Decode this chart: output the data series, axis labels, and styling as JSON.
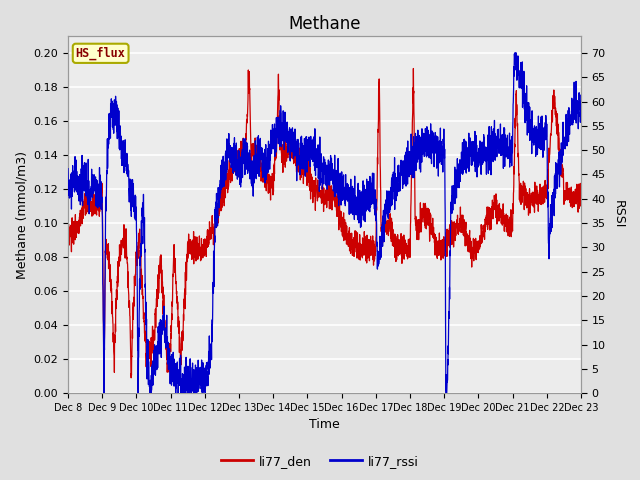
{
  "title": "Methane",
  "xlabel": "Time",
  "ylabel_left": "Methane (mmol/m3)",
  "ylabel_right": "RSSI",
  "legend_label": "HS_flux",
  "line1_label": "li77_den",
  "line2_label": "li77_rssi",
  "line1_color": "#cc0000",
  "line2_color": "#0000cc",
  "ylim_left": [
    0.0,
    0.21
  ],
  "ylim_right": [
    0,
    73.5
  ],
  "yticks_left": [
    0.0,
    0.02,
    0.04,
    0.06,
    0.08,
    0.1,
    0.12,
    0.14,
    0.16,
    0.18,
    0.2
  ],
  "yticks_right": [
    0,
    5,
    10,
    15,
    20,
    25,
    30,
    35,
    40,
    45,
    50,
    55,
    60,
    65,
    70
  ],
  "xtick_labels": [
    "Dec 8",
    "Dec 9",
    "Dec 10",
    "Dec 11",
    "Dec 12",
    "Dec 13",
    "Dec 14",
    "Dec 15",
    "Dec 16",
    "Dec 17",
    "Dec 18",
    "Dec 19",
    "Dec 20",
    "Dec 21",
    "Dec 22",
    "Dec 23"
  ],
  "bg_color": "#e0e0e0",
  "plot_bg_color": "#ececec",
  "title_fontsize": 12,
  "axis_fontsize": 9,
  "tick_fontsize": 8,
  "legend_box_facecolor": "#ffffcc",
  "legend_box_edgecolor": "#aaaa00",
  "legend_text_color": "#880000"
}
